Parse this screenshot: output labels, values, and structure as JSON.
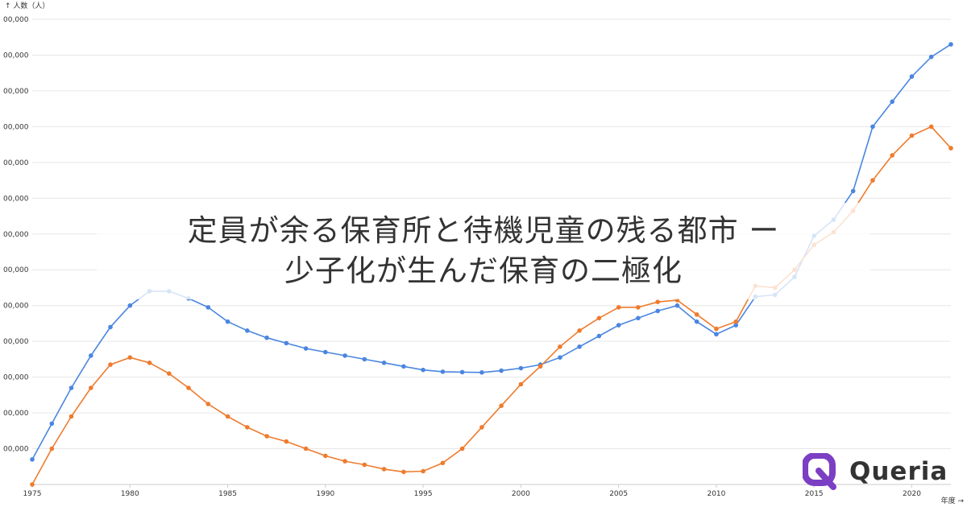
{
  "title": {
    "line1": "定員が余る保育所と待機児童の残る都市 ー",
    "line2": "少子化が生んだ保育の二極化"
  },
  "brand": {
    "name": "Queria",
    "logo_icon": "q-logo-icon",
    "accent": "#7b3fc4"
  },
  "chart_data": {
    "type": "line",
    "ylabel": "↑ 人数（人）",
    "xlabel": "年度 →",
    "ytick_labels": [
      "00,000",
      "00,000",
      "00,000",
      "00,000",
      "00,000",
      "00,000",
      "00,000",
      "00,000",
      "00,000",
      "00,000",
      "00,000",
      "00,000",
      "00,000"
    ],
    "x": [
      1975,
      1976,
      1977,
      1978,
      1979,
      1980,
      1981,
      1982,
      1983,
      1984,
      1985,
      1986,
      1987,
      1988,
      1989,
      1990,
      1991,
      1992,
      1993,
      1994,
      1995,
      1996,
      1997,
      1998,
      1999,
      2000,
      2001,
      2002,
      2003,
      2004,
      2005,
      2006,
      2007,
      2008,
      2009,
      2010,
      2011,
      2012,
      2013,
      2014,
      2015,
      2016,
      2017,
      2018,
      2019,
      2020,
      2021,
      2022
    ],
    "xticks": [
      1975,
      1980,
      1985,
      1990,
      1995,
      2000,
      2005,
      2010,
      2015,
      2020
    ],
    "ylim": [
      0,
      13
    ],
    "grid": true,
    "legend": "none",
    "series": [
      {
        "color": "#4a86e0",
        "values": [
          0.7,
          1.7,
          2.7,
          3.6,
          4.4,
          5.0,
          5.4,
          5.4,
          5.2,
          4.95,
          4.55,
          4.3,
          4.1,
          3.95,
          3.8,
          3.7,
          3.6,
          3.5,
          3.4,
          3.3,
          3.2,
          3.15,
          3.14,
          3.13,
          3.18,
          3.25,
          3.35,
          3.55,
          3.85,
          4.15,
          4.45,
          4.65,
          4.85,
          5.0,
          4.55,
          4.2,
          4.45,
          5.25,
          5.3,
          5.8,
          6.95,
          7.4,
          8.2,
          10.0,
          10.7,
          11.4,
          11.95,
          12.3
        ]
      },
      {
        "color": "#ef7b2d",
        "values": [
          0.0,
          1.0,
          1.9,
          2.7,
          3.35,
          3.55,
          3.4,
          3.1,
          2.7,
          2.25,
          1.9,
          1.6,
          1.35,
          1.2,
          1.0,
          0.8,
          0.65,
          0.55,
          0.43,
          0.35,
          0.37,
          0.6,
          1.0,
          1.6,
          2.2,
          2.8,
          3.3,
          3.85,
          4.3,
          4.65,
          4.95,
          4.95,
          5.1,
          5.15,
          4.75,
          4.35,
          4.55,
          5.55,
          5.5,
          6.0,
          6.7,
          7.05,
          7.65,
          8.5,
          9.2,
          9.75,
          10.0,
          9.4
        ]
      }
    ]
  }
}
